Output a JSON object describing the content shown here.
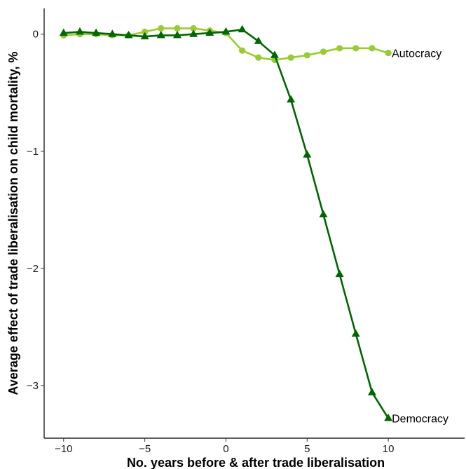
{
  "chart_data": {
    "type": "line",
    "title": "",
    "xlabel": "No. years before & after trade liberalisation",
    "ylabel": "Average effect of trade liberalisation on child mortality, %",
    "xlim": [
      -11.2,
      14.7
    ],
    "ylim": [
      -3.45,
      0.22
    ],
    "xticks": [
      -10,
      -5,
      0,
      5,
      10
    ],
    "xtick_labels": [
      "−10",
      "−5",
      "0",
      "5",
      "10"
    ],
    "yticks": [
      0,
      -1,
      -2,
      -3
    ],
    "ytick_labels": [
      "0",
      "−1",
      "−2",
      "−3"
    ],
    "grid": false,
    "legend": "none (series labelled directly at line ends)",
    "x": [
      -10,
      -9,
      -8,
      -7,
      -6,
      -5,
      -4,
      -3,
      -2,
      -1,
      0,
      1,
      2,
      3,
      4,
      5,
      6,
      7,
      8,
      9,
      10
    ],
    "series": [
      {
        "name": "Autocracy",
        "color": "#99CC33",
        "marker": "circle",
        "values": [
          -0.01,
          0.0,
          0.0,
          -0.01,
          -0.01,
          0.02,
          0.05,
          0.05,
          0.05,
          0.03,
          0.01,
          -0.14,
          -0.2,
          -0.22,
          -0.2,
          -0.18,
          -0.15,
          -0.12,
          -0.12,
          -0.12,
          -0.16
        ]
      },
      {
        "name": "Democracy",
        "color": "#006600",
        "marker": "triangle",
        "values": [
          0.01,
          0.02,
          0.01,
          0.0,
          -0.01,
          -0.02,
          -0.01,
          -0.01,
          0.0,
          0.01,
          0.02,
          0.04,
          -0.06,
          -0.18,
          -0.56,
          -1.03,
          -1.54,
          -2.05,
          -2.56,
          -3.06,
          -3.28
        ]
      }
    ]
  }
}
